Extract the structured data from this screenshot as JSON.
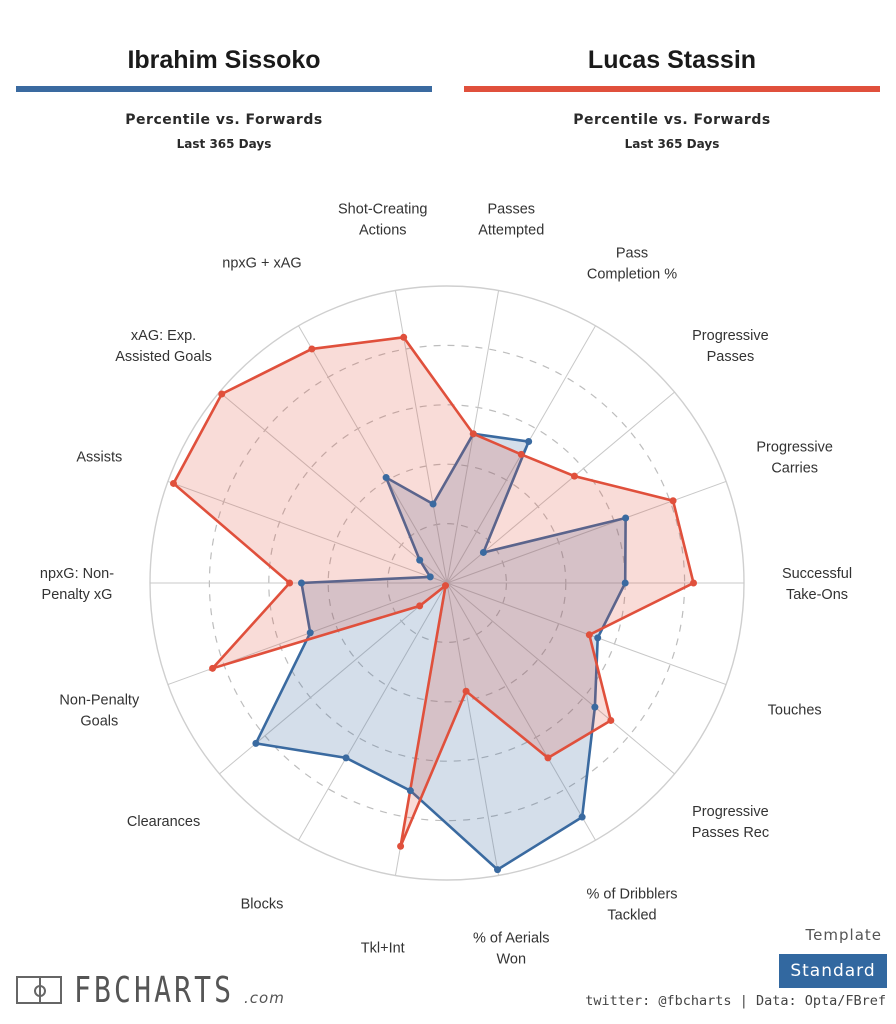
{
  "players": [
    {
      "name": "Ibrahim Sissoko",
      "color": "#3a6aa0",
      "subtitle": "Percentile vs. Forwards",
      "period": "Last 365 Days"
    },
    {
      "name": "Lucas Stassin",
      "color": "#e0503c",
      "subtitle": "Percentile vs. Forwards",
      "period": "Last 365 Days"
    }
  ],
  "template": {
    "label": "Template",
    "value": "Standard"
  },
  "brand": {
    "name": "FBCHARTS",
    "suffix": ".com"
  },
  "credit": "twitter: @fbcharts | Data: Opta/FBref",
  "chart_data": {
    "type": "radar",
    "title": "Ibrahim Sissoko vs Lucas Stassin",
    "range": [
      0,
      100
    ],
    "rings": [
      20,
      40,
      60,
      80,
      100
    ],
    "categories": [
      "Successful Take-Ons",
      "Progressive Carries",
      "Progressive Passes",
      "Pass Completion %",
      "Passes Attempted",
      "Shot-Creating Actions",
      "npxG + xAG",
      "xAG: Exp. Assisted Goals",
      "Assists",
      "npxG: Non-Penalty xG",
      "Non-Penalty Goals",
      "Clearances",
      "Blocks",
      "Tkl+Int",
      "% of Aerials Won",
      "% of Dribblers Tackled",
      "Progressive Passes Rec",
      "Touches"
    ],
    "series": [
      {
        "name": "Ibrahim Sissoko",
        "color": "#3a6aa0",
        "values": [
          60,
          64,
          16,
          55,
          51,
          27,
          41,
          12,
          6,
          49,
          49,
          84,
          68,
          71,
          98,
          91,
          65,
          54
        ]
      },
      {
        "name": "Lucas Stassin",
        "color": "#e0503c",
        "values": [
          83,
          81,
          56,
          50,
          51,
          84,
          91,
          99,
          98,
          53,
          84,
          12,
          1,
          90,
          37,
          68,
          72,
          51
        ]
      }
    ]
  }
}
